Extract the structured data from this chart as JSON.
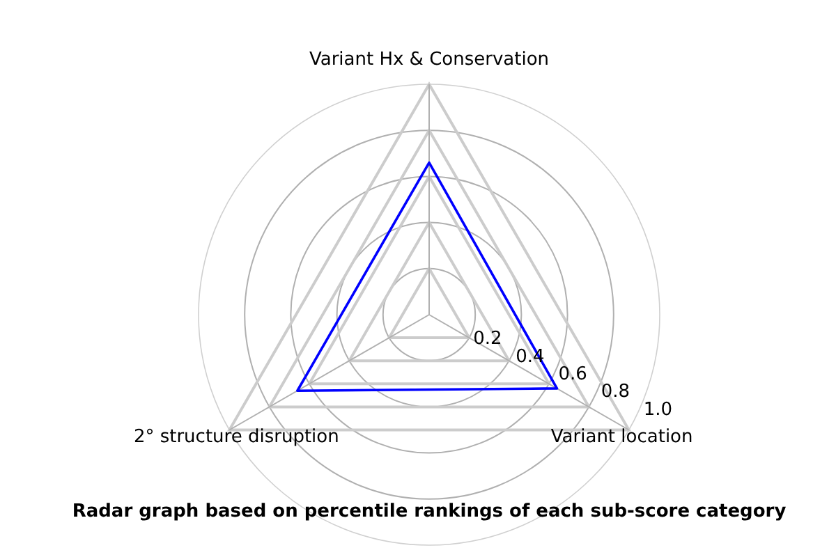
{
  "chart_data": {
    "type": "radar",
    "title": "Radar graph based on percentile rankings of each sub-score category",
    "categories": [
      "Variant Hx & Conservation",
      "Variant location",
      "2° structure disruption"
    ],
    "series": [
      {
        "color": "#0000ff",
        "values": [
          0.66,
          0.64,
          0.66
        ]
      }
    ],
    "ylim": [
      0,
      1
    ],
    "yticks": [
      0.2,
      0.4,
      0.6,
      0.8,
      {
        "value": 1,
        "label": "1.0"
      }
    ],
    "grid": true,
    "marker": "none",
    "line_style": "solid"
  }
}
